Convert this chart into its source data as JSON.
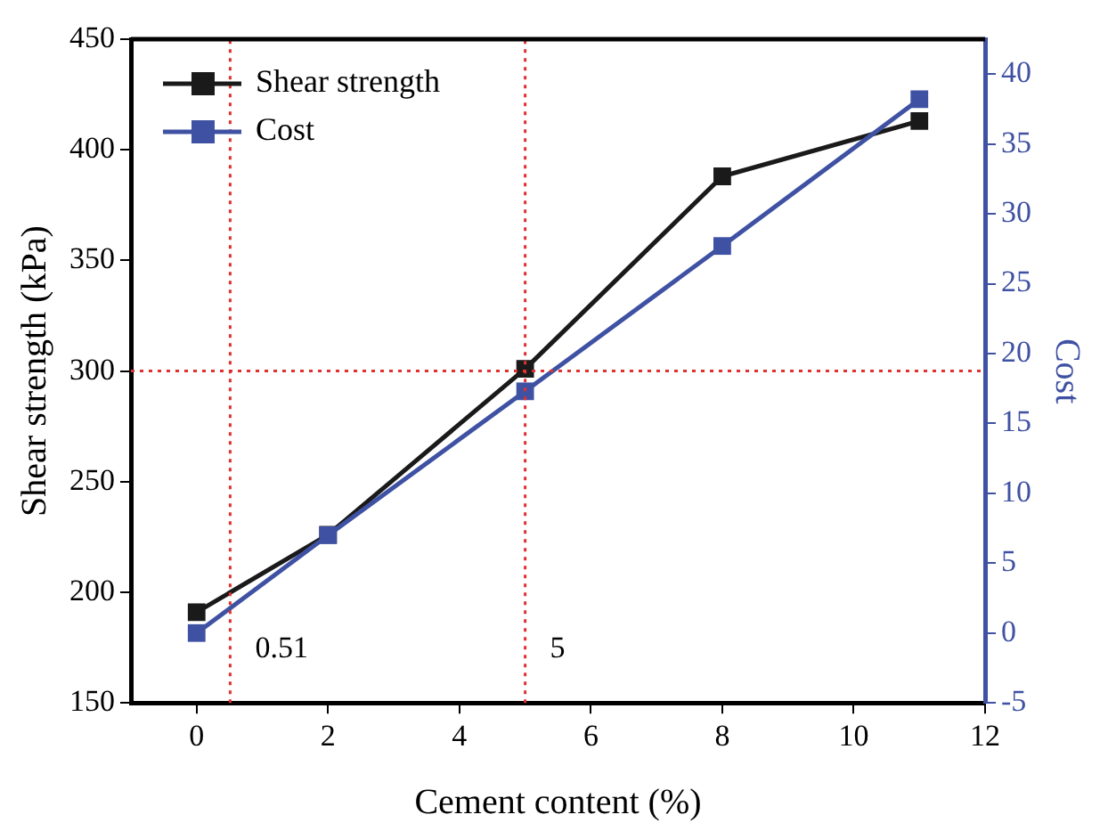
{
  "chart_data": {
    "type": "line",
    "xlabel": "Cement content (%)",
    "ylabel": "Shear strength (kPa)",
    "y2label": "Cost",
    "x": [
      0,
      2,
      5,
      8,
      11
    ],
    "series": [
      {
        "name": "Shear strength",
        "color": "#1a1a1a",
        "values": [
          191,
          226,
          301,
          388,
          413
        ]
      },
      {
        "name": "Cost",
        "color": "#3f51a3",
        "axis": "y2",
        "values": [
          0,
          7,
          17.3,
          27.7,
          38.2
        ]
      }
    ],
    "xlim": [
      -1,
      12
    ],
    "xticks": [
      0,
      2,
      4,
      6,
      8,
      10,
      12
    ],
    "ylim": [
      150,
      450
    ],
    "yticks": [
      150,
      200,
      250,
      300,
      350,
      400,
      450
    ],
    "y2lim": [
      -5,
      42.5
    ],
    "y2ticks": [
      -5,
      0,
      5,
      10,
      15,
      20,
      25,
      30,
      35,
      40
    ],
    "ref_lines": [
      {
        "axis": "x",
        "value": 0.51,
        "label": "0.51",
        "color": "#e03030",
        "line_style": "dotted"
      },
      {
        "axis": "x",
        "value": 5,
        "label": "5",
        "color": "#e03030",
        "line_style": "dotted"
      },
      {
        "axis": "y",
        "value": 300,
        "color": "#e03030",
        "line_style": "dotted"
      }
    ],
    "legend": "top left",
    "marker": "square",
    "line_style": "solid",
    "grid": false
  }
}
